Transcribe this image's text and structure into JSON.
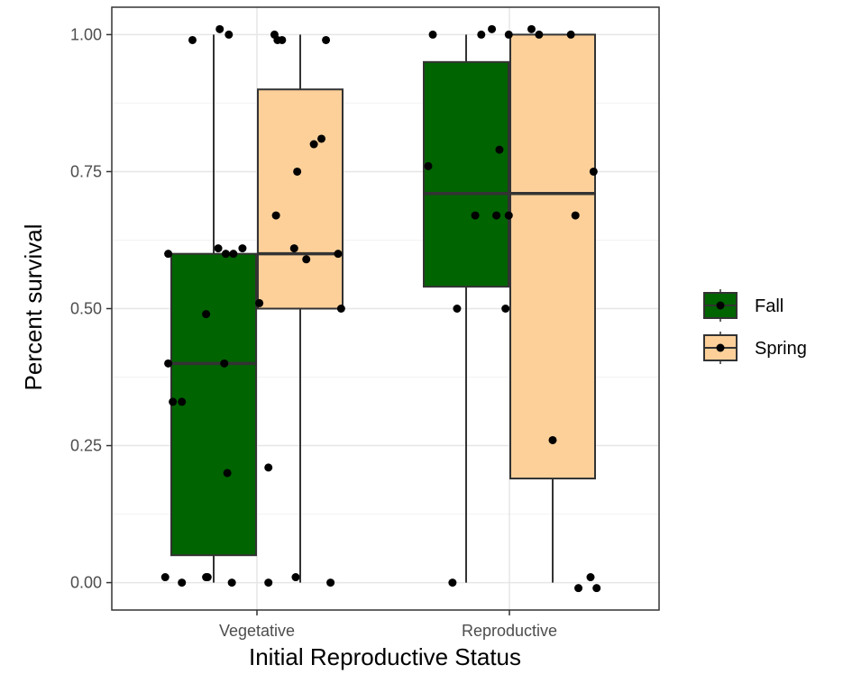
{
  "chart_data": {
    "type": "box",
    "xlabel": "Initial Reproductive Status",
    "ylabel": "Percent survival",
    "categories": [
      "Vegetative",
      "Reproductive"
    ],
    "ylim": [
      -0.05,
      1.05
    ],
    "yticks": [
      0.0,
      0.25,
      0.5,
      0.75,
      1.0
    ],
    "ytick_labels": [
      "0.00",
      "0.25",
      "0.50",
      "0.75",
      "1.00"
    ],
    "grid": true,
    "legend_position": "right",
    "series": [
      {
        "name": "Fall",
        "color": "#006400",
        "boxes": [
          {
            "category": "Vegetative",
            "min": 0.0,
            "q1": 0.05,
            "median": 0.4,
            "q3": 0.6,
            "max": 1.0
          },
          {
            "category": "Reproductive",
            "min": 0.0,
            "q1": 0.54,
            "median": 0.71,
            "q3": 0.95,
            "max": 1.0
          }
        ],
        "points": [
          {
            "category": "Vegetative",
            "y": [
              0.99,
              1.01,
              1.0,
              0.6,
              0.61,
              0.6,
              0.6,
              0.61,
              0.49,
              0.4,
              0.4,
              0.33,
              0.33,
              0.2,
              0.01,
              0.0,
              0.01,
              0.01,
              0.0
            ],
            "jitter": [
              -0.14,
              0.04,
              0.1,
              -0.3,
              0.03,
              0.08,
              0.13,
              0.19,
              -0.05,
              -0.3,
              0.07,
              -0.27,
              -0.21,
              0.09,
              -0.32,
              -0.21,
              -0.05,
              -0.04,
              0.12
            ]
          },
          {
            "category": "Reproductive",
            "y": [
              1.0,
              1.0,
              1.01,
              0.76,
              0.79,
              0.67,
              0.67,
              0.5,
              0.5,
              0.0
            ],
            "jitter": [
              -0.22,
              0.1,
              0.17,
              -0.25,
              0.22,
              0.06,
              0.2,
              -0.06,
              0.26,
              -0.09
            ]
          }
        ]
      },
      {
        "name": "Spring",
        "color": "#FDD09A",
        "boxes": [
          {
            "category": "Vegetative",
            "min": 0.0,
            "q1": 0.5,
            "median": 0.6,
            "q3": 0.9,
            "max": 1.0
          },
          {
            "category": "Reproductive",
            "min": 0.0,
            "q1": 0.19,
            "median": 0.71,
            "q3": 1.0,
            "max": 1.0
          }
        ],
        "points": [
          {
            "category": "Vegetative",
            "y": [
              1.0,
              0.99,
              0.99,
              0.99,
              0.81,
              0.8,
              0.75,
              0.67,
              0.61,
              0.6,
              0.59,
              0.51,
              0.5,
              0.21,
              0.0,
              0.0,
              0.01
            ],
            "jitter": [
              -0.17,
              -0.15,
              -0.12,
              0.17,
              0.14,
              0.09,
              -0.02,
              -0.16,
              -0.04,
              0.25,
              0.04,
              -0.27,
              0.27,
              -0.21,
              -0.21,
              0.2,
              -0.03
            ]
          },
          {
            "category": "Reproductive",
            "y": [
              1.0,
              1.01,
              1.0,
              1.0,
              0.75,
              0.67,
              0.67,
              0.26,
              0.01,
              -0.01,
              -0.01
            ],
            "jitter": [
              -0.29,
              -0.14,
              -0.09,
              0.12,
              0.27,
              -0.29,
              0.15,
              0.0,
              0.25,
              0.17,
              0.29
            ]
          }
        ]
      }
    ]
  }
}
